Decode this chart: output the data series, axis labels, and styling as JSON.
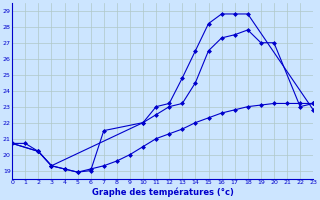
{
  "title": "Graphe des températures (°c)",
  "bg_color": "#cce5ff",
  "grid_color": "#b0c8c8",
  "line_color": "#0000cc",
  "xlim": [
    0,
    23
  ],
  "ylim": [
    18.5,
    29.5
  ],
  "yticks": [
    19,
    20,
    21,
    22,
    23,
    24,
    25,
    26,
    27,
    28,
    29
  ],
  "xticks": [
    0,
    1,
    2,
    3,
    4,
    5,
    6,
    7,
    8,
    9,
    10,
    11,
    12,
    13,
    14,
    15,
    16,
    17,
    18,
    19,
    20,
    21,
    22,
    23
  ],
  "series": [
    {
      "x": [
        0,
        2,
        3,
        10,
        11,
        12,
        13,
        14,
        15,
        16,
        17,
        18,
        23
      ],
      "y": [
        20.7,
        20.2,
        19.3,
        22.0,
        23.0,
        23.2,
        24.8,
        26.5,
        28.2,
        28.8,
        28.8,
        28.8,
        22.8
      ]
    },
    {
      "x": [
        0,
        2,
        3,
        4,
        5,
        6,
        7,
        10,
        11,
        12,
        13,
        14,
        15,
        16,
        17,
        18,
        19,
        20,
        22,
        23
      ],
      "y": [
        20.7,
        20.2,
        19.3,
        19.1,
        18.9,
        19.0,
        21.5,
        22.0,
        22.5,
        23.0,
        23.2,
        24.5,
        26.5,
        27.3,
        27.5,
        27.8,
        27.0,
        27.0,
        23.0,
        23.2
      ]
    },
    {
      "x": [
        0,
        1,
        2,
        3,
        4,
        5,
        6,
        7,
        8,
        9,
        10,
        11,
        12,
        13,
        14,
        15,
        16,
        17,
        18,
        19,
        20,
        21,
        22,
        23
      ],
      "y": [
        20.7,
        20.7,
        20.2,
        19.3,
        19.1,
        18.9,
        19.1,
        19.3,
        19.6,
        20.0,
        20.5,
        21.0,
        21.3,
        21.6,
        22.0,
        22.3,
        22.6,
        22.8,
        23.0,
        23.1,
        23.2,
        23.2,
        23.2,
        23.2
      ]
    }
  ]
}
